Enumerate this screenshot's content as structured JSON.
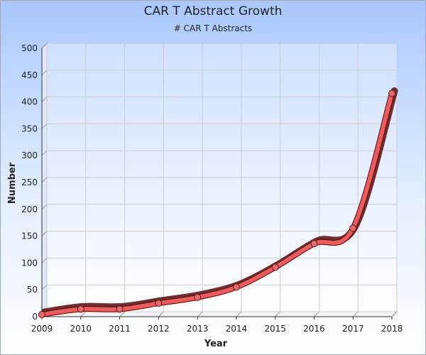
{
  "chart_data": {
    "type": "line",
    "title": "CAR T Abstract Growth",
    "subtitle": "# CAR T Abstracts",
    "xlabel": "Year",
    "ylabel": "Number",
    "categories": [
      "2009",
      "2010",
      "2011",
      "2012",
      "2013",
      "2014",
      "2015",
      "2016",
      "2017",
      "2018"
    ],
    "series": [
      {
        "values": [
          4,
          14,
          14,
          25,
          36,
          55,
          92,
          136,
          165,
          416
        ]
      }
    ],
    "ylim": [
      0,
      500
    ],
    "yticks": [
      "0",
      "50",
      "100",
      "150",
      "200",
      "250",
      "300",
      "350",
      "400",
      "450",
      "500"
    ],
    "grid": true,
    "legend": "none",
    "colors": {
      "line": "#f05a5a",
      "line_dark": "#7a2a2a",
      "marker": "#e86a6a"
    }
  }
}
